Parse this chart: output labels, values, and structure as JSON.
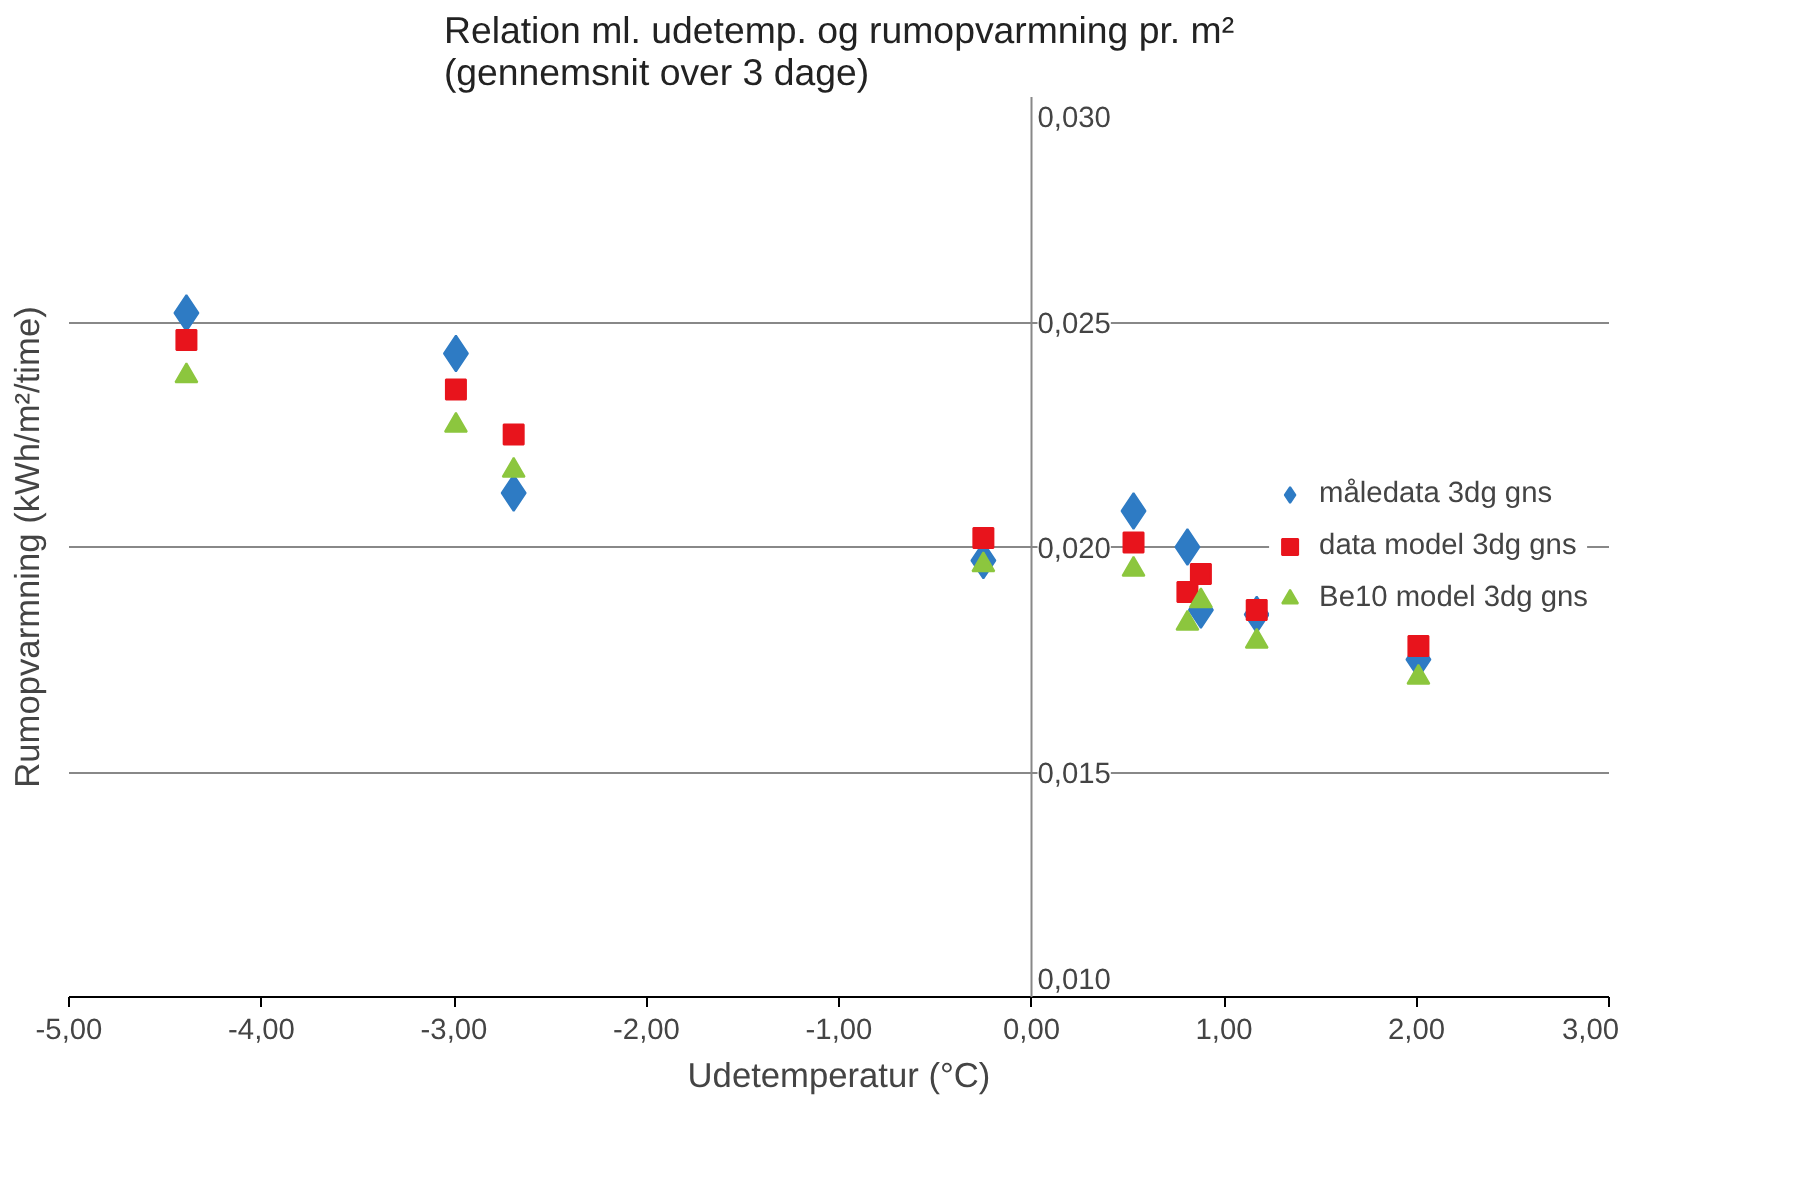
{
  "chart_data": {
    "type": "scatter",
    "title": "Relation ml. udetemp. og rumopvarmning pr. m²\n(gennemsnit over 3 dage)",
    "xlabel": "Udetemperatur (°C)",
    "ylabel": "Rumopvarmning (kWh/m²/time)",
    "x": [
      -4.39,
      -2.99,
      -2.69,
      -0.25,
      0.53,
      0.81,
      0.88,
      1.17,
      2.01
    ],
    "series": [
      {
        "name": "måledata 3dg gns",
        "color": "#2e7bc4",
        "marker": "diamond",
        "values": [
          0.0252,
          0.0243,
          0.0212,
          0.0197,
          0.0208,
          0.02,
          0.0186,
          0.0185,
          0.0175
        ]
      },
      {
        "name": "data model 3dg gns",
        "color": "#e8141c",
        "marker": "square",
        "values": [
          0.0246,
          0.0235,
          0.0225,
          0.0202,
          0.0201,
          0.019,
          0.0194,
          0.0186,
          0.0178
        ]
      },
      {
        "name": "Be10 model 3dg gns",
        "color": "#8cc63e",
        "marker": "triangle",
        "values": [
          0.0238,
          0.0227,
          0.0217,
          0.0196,
          0.0195,
          0.0183,
          0.0188,
          0.0179,
          0.0171
        ]
      }
    ],
    "xlim": [
      -5,
      3
    ],
    "ylim": [
      0.01,
      0.03
    ],
    "xticks": [
      {
        "value": -5,
        "label": "-5,00"
      },
      {
        "value": -4,
        "label": "-4,00"
      },
      {
        "value": -3,
        "label": "-3,00"
      },
      {
        "value": -2,
        "label": "-2,00"
      },
      {
        "value": -1,
        "label": "-1,00"
      },
      {
        "value": 0,
        "label": "0,00"
      },
      {
        "value": 1,
        "label": "1,00"
      },
      {
        "value": 2,
        "label": "2,00"
      },
      {
        "value": 3,
        "label": "3,00"
      }
    ],
    "yticks": [
      {
        "value": 0.01,
        "label": "0,010"
      },
      {
        "value": 0.015,
        "label": "0,015"
      },
      {
        "value": 0.02,
        "label": "0,020"
      },
      {
        "value": 0.025,
        "label": "0,025"
      },
      {
        "value": 0.03,
        "label": "0,030"
      }
    ],
    "grid": "y",
    "legend": "right"
  }
}
